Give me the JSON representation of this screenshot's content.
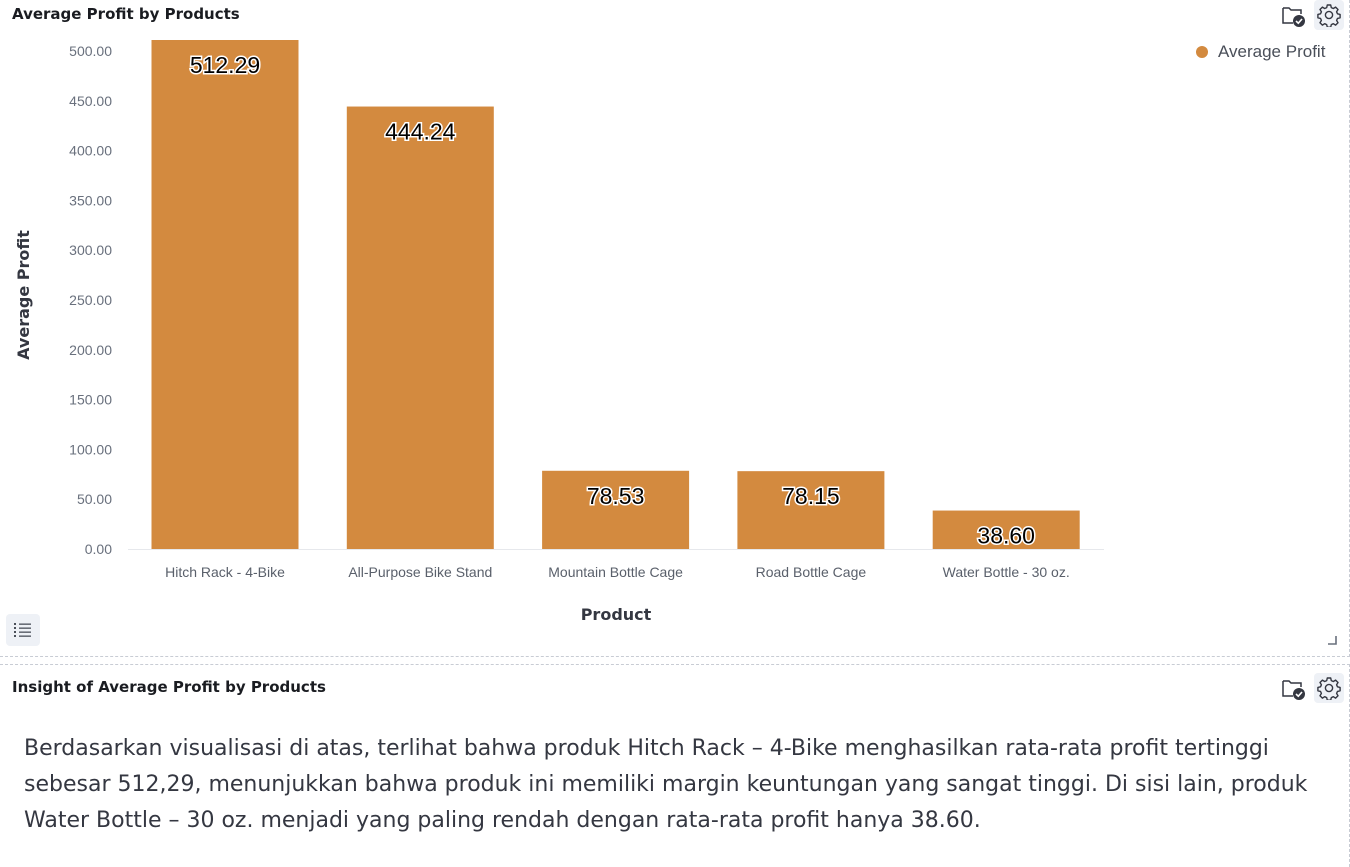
{
  "chart_panel": {
    "title": "Average Profit by Products",
    "actions": [
      {
        "icon": "folder-check-icon"
      },
      {
        "icon": "gear-icon"
      }
    ]
  },
  "insight_panel": {
    "title": "Insight of Average Profit by Products",
    "text": "Berdasarkan visualisasi di atas, terlihat bahwa produk Hitch Rack – 4-Bike menghasilkan rata-rata profit tertinggi sebesar 512,29, menunjukkan bahwa produk ini memiliki margin keuntungan yang sangat tinggi. Di sisi lain, produk Water Bottle – 30 oz. menjadi yang paling rendah dengan rata-rata profit hanya 38.60.",
    "actions": [
      {
        "icon": "folder-check-icon"
      },
      {
        "icon": "gear-icon"
      }
    ]
  },
  "colors": {
    "bar": "#d38a3f",
    "legend_dot": "#d38a3f"
  },
  "chart_data": {
    "type": "bar",
    "title": "Average Profit by Products",
    "xlabel": "Product",
    "ylabel": "Average Profit",
    "categories": [
      "Hitch Rack - 4-Bike",
      "All-Purpose Bike Stand",
      "Mountain Bottle Cage",
      "Road Bottle Cage",
      "Water Bottle - 30 oz."
    ],
    "series": [
      {
        "name": "Average Profit",
        "values": [
          512.29,
          444.24,
          78.53,
          78.15,
          38.6
        ],
        "labels": [
          "512.29",
          "444.24",
          "78.53",
          "78.15",
          "38.60"
        ]
      }
    ],
    "yticks": [
      "0.00",
      "50.00",
      "100.00",
      "150.00",
      "200.00",
      "250.00",
      "300.00",
      "350.00",
      "400.00",
      "450.00",
      "500.00"
    ],
    "ylim": [
      0,
      512.29
    ],
    "legend_position": "top-right",
    "grid": false
  }
}
